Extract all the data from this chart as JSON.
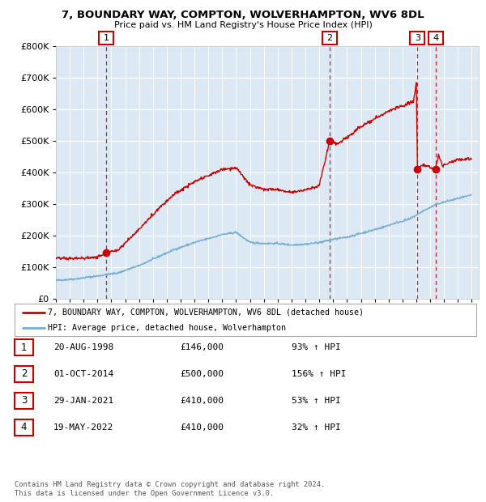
{
  "title_line1": "7, BOUNDARY WAY, COMPTON, WOLVERHAMPTON, WV6 8DL",
  "title_line2": "Price paid vs. HM Land Registry's House Price Index (HPI)",
  "bg_color": "#dce9f5",
  "red_line_color": "#cc0000",
  "blue_line_color": "#7aafd4",
  "grid_color": "#ffffff",
  "legend_entries": [
    "7, BOUNDARY WAY, COMPTON, WOLVERHAMPTON, WV6 8DL (detached house)",
    "HPI: Average price, detached house, Wolverhampton"
  ],
  "table_rows": [
    {
      "num": "1",
      "date": "20-AUG-1998",
      "price": "£146,000",
      "pct": "93% ↑ HPI"
    },
    {
      "num": "2",
      "date": "01-OCT-2014",
      "price": "£500,000",
      "pct": "156% ↑ HPI"
    },
    {
      "num": "3",
      "date": "29-JAN-2021",
      "price": "£410,000",
      "pct": "53% ↑ HPI"
    },
    {
      "num": "4",
      "date": "19-MAY-2022",
      "price": "£410,000",
      "pct": "32% ↑ HPI"
    }
  ],
  "footer": "Contains HM Land Registry data © Crown copyright and database right 2024.\nThis data is licensed under the Open Government Licence v3.0.",
  "ylim": [
    0,
    800000
  ],
  "yticks": [
    0,
    100000,
    200000,
    300000,
    400000,
    500000,
    600000,
    700000,
    800000
  ],
  "xlim_start": 1995.0,
  "xlim_end": 2025.5,
  "purchase_dates_decimal": [
    1998.635,
    2014.748,
    2021.082,
    2022.38
  ],
  "purchase_prices": [
    146000,
    500000,
    410000,
    410000
  ]
}
